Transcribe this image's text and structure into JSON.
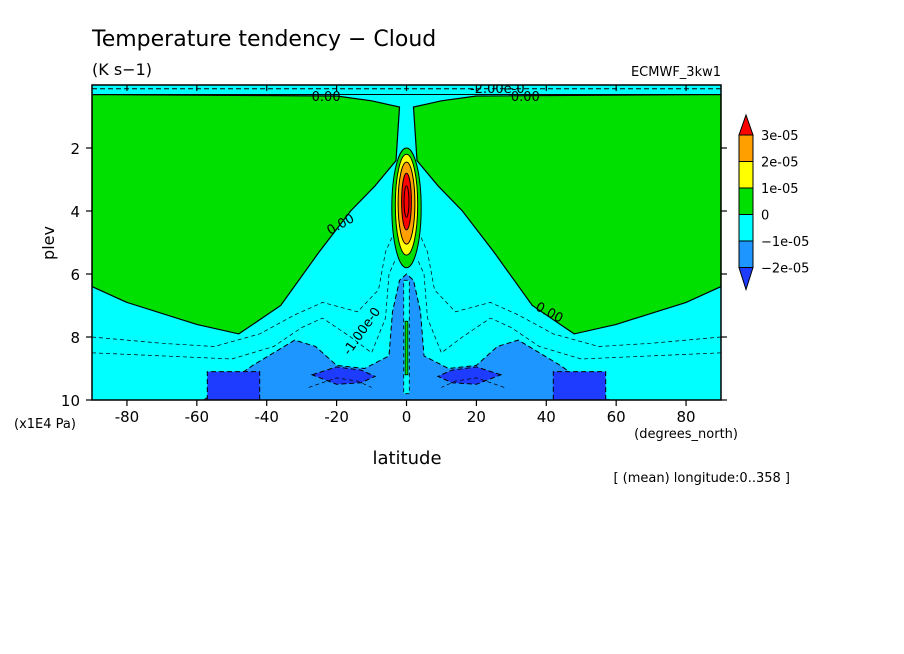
{
  "chart_data": {
    "type": "heatmap",
    "title": "Temperature tendency − Cloud",
    "subtitle": "(K s−1)",
    "model_label": "ECMWF_3kw1",
    "xlabel": "latitude",
    "x_units": "(degrees_north)",
    "ylabel": "plev",
    "y_units": "(x1E4 Pa)",
    "footnote": "[ (mean) longitude:0..358 ]",
    "xlim": [
      -90,
      90
    ],
    "ylim": [
      10,
      0
    ],
    "x_ticks": [
      -80,
      -60,
      -40,
      -20,
      0,
      20,
      40,
      60,
      80
    ],
    "y_ticks": [
      2,
      4,
      6,
      8,
      10
    ],
    "colorbar": {
      "levels": [
        "3e-05",
        "2e-05",
        "1e-05",
        "0",
        "−1e-05",
        "−2e-05"
      ],
      "colors": [
        "#ff0000",
        "#ffa000",
        "#ffff00",
        "#00e000",
        "#00ffff",
        "#1e96ff",
        "#1e3cff"
      ]
    },
    "contour_labels": [
      "0.00",
      "0.00",
      "0.00",
      "0.00",
      "-2.00e-0",
      "-1.00e-0"
    ],
    "regions": [
      {
        "name": "warming (0 to 1e-05)",
        "color": "#00e000",
        "left": [
          [
            -90,
            0.3
          ],
          [
            -90,
            6.4
          ],
          [
            -80,
            6.9
          ],
          [
            -60,
            7.6
          ],
          [
            -48,
            7.9
          ],
          [
            -36,
            7.0
          ],
          [
            -25,
            5.3
          ],
          [
            -16,
            4.0
          ],
          [
            -9,
            3.2
          ],
          [
            -3,
            2.4
          ],
          [
            -2,
            0.7
          ],
          [
            -6,
            0.6
          ],
          [
            -10,
            0.5
          ],
          [
            -20,
            0.35
          ]
        ],
        "right": [
          [
            90,
            0.3
          ],
          [
            90,
            6.4
          ],
          [
            80,
            6.9
          ],
          [
            60,
            7.6
          ],
          [
            48,
            7.9
          ],
          [
            36,
            7.0
          ],
          [
            25,
            5.3
          ],
          [
            16,
            4.0
          ],
          [
            9,
            3.2
          ],
          [
            3,
            2.4
          ],
          [
            2,
            0.7
          ],
          [
            6,
            0.6
          ],
          [
            10,
            0.5
          ],
          [
            20,
            0.35
          ]
        ]
      },
      {
        "name": "cooling (-1e-05 to -2e-05)",
        "color": "#1e96ff",
        "polygons": [
          [
            [
              -58,
              10
            ],
            [
              -44,
              8.9
            ],
            [
              -32,
              8.1
            ],
            [
              -26,
              8.3
            ],
            [
              -20,
              8.9
            ],
            [
              -12,
              9.0
            ],
            [
              -5,
              8.6
            ],
            [
              -4,
              7.2
            ],
            [
              -2,
              6.2
            ],
            [
              0,
              6.0
            ],
            [
              2,
              6.2
            ],
            [
              4,
              7.2
            ],
            [
              5,
              8.6
            ],
            [
              12,
              9.0
            ],
            [
              20,
              8.9
            ],
            [
              26,
              8.3
            ],
            [
              32,
              8.1
            ],
            [
              44,
              8.9
            ],
            [
              58,
              10
            ]
          ]
        ]
      },
      {
        "name": "strong cooling (< -2e-05)",
        "color": "#1e3cff",
        "polygons": [
          [
            [
              -57,
              10
            ],
            [
              -57,
              9.1
            ],
            [
              -42,
              9.1
            ],
            [
              -42,
              10
            ]
          ],
          [
            [
              57,
              10
            ],
            [
              57,
              9.1
            ],
            [
              42,
              9.1
            ],
            [
              42,
              10
            ]
          ],
          [
            [
              -27,
              9.2
            ],
            [
              -20,
              8.95
            ],
            [
              -13,
              9.05
            ],
            [
              -9,
              9.25
            ],
            [
              -13,
              9.45
            ],
            [
              -20,
              9.5
            ]
          ],
          [
            [
              27,
              9.2
            ],
            [
              20,
              8.95
            ],
            [
              13,
              9.05
            ],
            [
              9,
              9.25
            ],
            [
              13,
              9.45
            ],
            [
              20,
              9.5
            ]
          ]
        ]
      },
      {
        "name": "equatorial heating core",
        "color": "#ff0000",
        "peak_lat": 0,
        "peak_plev": 3.7,
        "max": "3e-05"
      }
    ]
  }
}
